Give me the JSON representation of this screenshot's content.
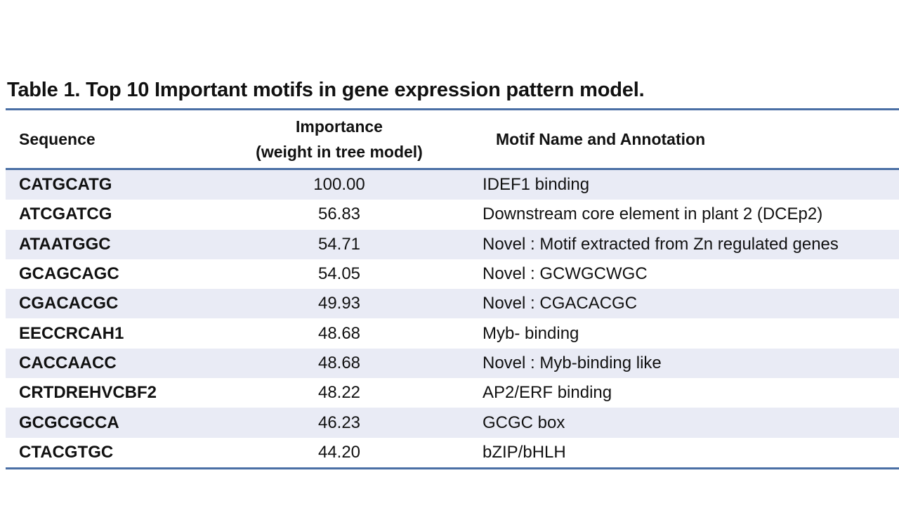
{
  "title": "Table 1. Top 10 Important motifs in gene expression pattern model.",
  "header": {
    "sequence": "Sequence",
    "importance_line1": "Importance",
    "importance_line2": "(weight in tree model)",
    "annotation": "Motif Name and Annotation"
  },
  "rows": [
    {
      "sequence": "CATGCATG",
      "importance": "100.00",
      "annotation": "IDEF1 binding"
    },
    {
      "sequence": "ATCGATCG",
      "importance": "56.83",
      "annotation": "Downstream core element in plant 2 (DCEp2)"
    },
    {
      "sequence": "ATAATGGC",
      "importance": "54.71",
      "annotation": "Novel : Motif extracted from Zn regulated genes"
    },
    {
      "sequence": "GCAGCAGC",
      "importance": "54.05",
      "annotation": "Novel : GCWGCWGC"
    },
    {
      "sequence": "CGACACGC",
      "importance": "49.93",
      "annotation": "Novel : CGACACGC"
    },
    {
      "sequence": "EECCRCAH1",
      "importance": "48.68",
      "annotation": "Myb- binding"
    },
    {
      "sequence": "CACCAACC",
      "importance": "48.68",
      "annotation": "Novel : Myb-binding like"
    },
    {
      "sequence": "CRTDREHVCBF2",
      "importance": "48.22",
      "annotation": "AP2/ERF binding"
    },
    {
      "sequence": "GCGCGCCA",
      "importance": "46.23",
      "annotation": "GCGC box"
    },
    {
      "sequence": "CTACGTGC",
      "importance": "44.20",
      "annotation": "bZIP/bHLH"
    }
  ],
  "colors": {
    "rule": "#4a6fa5",
    "shaded_row": "#e9ebf5"
  }
}
